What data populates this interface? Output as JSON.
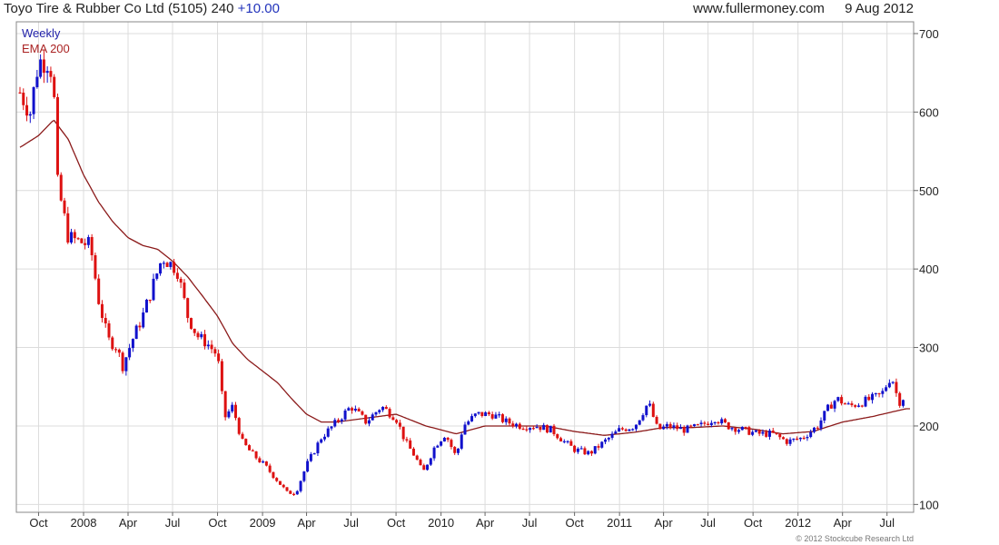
{
  "header": {
    "company": "Toyo Tire & Rubber Co Ltd",
    "code": "(5105)",
    "price": "240",
    "change": "+10.00",
    "site": "www.fullermoney.com",
    "date": "9 Aug 2012"
  },
  "copyright": "© 2012 Stockcube Research Ltd",
  "colors": {
    "up": "#1111cc",
    "down": "#dd1111",
    "ema": "#8b1a1a",
    "grid": "#dcdcdc"
  },
  "chart_data": {
    "type": "candlestick",
    "legend": [
      "Weekly",
      "EMA 200"
    ],
    "legend_position": "top-left",
    "grid": true,
    "ylim": [
      90,
      715
    ],
    "y_ticks": [
      100,
      200,
      300,
      400,
      500,
      600,
      700
    ],
    "x_tick_labels": [
      "Oct",
      "2008",
      "Apr",
      "Jul",
      "Oct",
      "2009",
      "Apr",
      "Jul",
      "Oct",
      "2010",
      "Apr",
      "Jul",
      "Oct",
      "2011",
      "Apr",
      "Jul",
      "Oct",
      "2012",
      "Apr",
      "Jul"
    ],
    "x_tick_dates": [
      "2007-10-01",
      "2008-01-01",
      "2008-04-01",
      "2008-07-01",
      "2008-10-01",
      "2009-01-01",
      "2009-04-01",
      "2009-07-01",
      "2009-10-01",
      "2010-01-01",
      "2010-04-01",
      "2010-07-01",
      "2010-10-01",
      "2011-01-01",
      "2011-04-01",
      "2011-07-01",
      "2011-10-01",
      "2012-01-01",
      "2012-04-01",
      "2012-07-01"
    ],
    "x_range": [
      "2007-08-24",
      "2012-08-17"
    ],
    "price_anchors": [
      [
        "2007-08-24",
        625
      ],
      [
        "2007-09-14",
        600
      ],
      [
        "2007-10-01",
        665
      ],
      [
        "2007-10-20",
        665
      ],
      [
        "2007-11-01",
        645
      ],
      [
        "2007-11-05",
        520
      ],
      [
        "2007-12-01",
        440
      ],
      [
        "2008-01-15",
        430
      ],
      [
        "2008-02-01",
        360
      ],
      [
        "2008-02-20",
        310
      ],
      [
        "2008-03-10",
        300
      ],
      [
        "2008-03-20",
        275
      ],
      [
        "2008-04-10",
        310
      ],
      [
        "2008-05-01",
        340
      ],
      [
        "2008-06-10",
        415
      ],
      [
        "2008-07-10",
        400
      ],
      [
        "2008-08-01",
        340
      ],
      [
        "2008-08-20",
        315
      ],
      [
        "2008-09-10",
        305
      ],
      [
        "2008-10-01",
        290
      ],
      [
        "2008-10-15",
        210
      ],
      [
        "2008-11-01",
        225
      ],
      [
        "2008-11-20",
        180
      ],
      [
        "2008-12-10",
        165
      ],
      [
        "2009-01-05",
        150
      ],
      [
        "2009-02-01",
        130
      ],
      [
        "2009-02-20",
        115
      ],
      [
        "2009-03-10",
        115
      ],
      [
        "2009-04-01",
        150
      ],
      [
        "2009-05-01",
        185
      ],
      [
        "2009-06-01",
        205
      ],
      [
        "2009-07-01",
        225
      ],
      [
        "2009-08-01",
        205
      ],
      [
        "2009-09-01",
        225
      ],
      [
        "2009-10-01",
        210
      ],
      [
        "2009-10-20",
        180
      ],
      [
        "2009-11-10",
        160
      ],
      [
        "2009-11-25",
        140
      ],
      [
        "2009-12-20",
        175
      ],
      [
        "2010-01-10",
        190
      ],
      [
        "2010-02-01",
        160
      ],
      [
        "2010-02-15",
        200
      ],
      [
        "2010-03-15",
        215
      ],
      [
        "2010-04-15",
        215
      ],
      [
        "2010-05-15",
        205
      ],
      [
        "2010-06-15",
        200
      ],
      [
        "2010-07-15",
        200
      ],
      [
        "2010-08-15",
        195
      ],
      [
        "2010-09-10",
        180
      ],
      [
        "2010-10-01",
        170
      ],
      [
        "2010-11-01",
        165
      ],
      [
        "2010-12-01",
        180
      ],
      [
        "2011-01-01",
        195
      ],
      [
        "2011-02-01",
        200
      ],
      [
        "2011-03-01",
        230
      ],
      [
        "2011-03-20",
        195
      ],
      [
        "2011-04-10",
        200
      ],
      [
        "2011-05-15",
        195
      ],
      [
        "2011-06-15",
        200
      ],
      [
        "2011-07-15",
        210
      ],
      [
        "2011-08-10",
        200
      ],
      [
        "2011-09-10",
        195
      ],
      [
        "2011-10-10",
        190
      ],
      [
        "2011-11-10",
        190
      ],
      [
        "2011-12-10",
        180
      ],
      [
        "2012-01-10",
        185
      ],
      [
        "2012-02-10",
        200
      ],
      [
        "2012-03-05",
        225
      ],
      [
        "2012-03-20",
        235
      ],
      [
        "2012-04-15",
        225
      ],
      [
        "2012-05-10",
        230
      ],
      [
        "2012-06-01",
        235
      ],
      [
        "2012-06-20",
        240
      ],
      [
        "2012-07-10",
        265
      ],
      [
        "2012-07-25",
        230
      ],
      [
        "2012-08-09",
        240
      ]
    ],
    "ema_anchors": [
      [
        "2007-08-24",
        555
      ],
      [
        "2007-10-01",
        570
      ],
      [
        "2007-11-01",
        590
      ],
      [
        "2007-12-01",
        565
      ],
      [
        "2008-01-01",
        520
      ],
      [
        "2008-02-01",
        485
      ],
      [
        "2008-03-01",
        460
      ],
      [
        "2008-04-01",
        440
      ],
      [
        "2008-05-01",
        430
      ],
      [
        "2008-06-01",
        425
      ],
      [
        "2008-07-01",
        410
      ],
      [
        "2008-08-01",
        390
      ],
      [
        "2008-09-01",
        365
      ],
      [
        "2008-10-01",
        340
      ],
      [
        "2008-11-01",
        305
      ],
      [
        "2008-12-01",
        285
      ],
      [
        "2009-01-01",
        270
      ],
      [
        "2009-02-01",
        255
      ],
      [
        "2009-03-01",
        235
      ],
      [
        "2009-04-01",
        215
      ],
      [
        "2009-05-01",
        205
      ],
      [
        "2009-06-01",
        205
      ],
      [
        "2009-08-01",
        210
      ],
      [
        "2009-10-01",
        215
      ],
      [
        "2009-12-01",
        200
      ],
      [
        "2010-02-01",
        190
      ],
      [
        "2010-04-01",
        200
      ],
      [
        "2010-06-01",
        200
      ],
      [
        "2010-08-01",
        200
      ],
      [
        "2010-10-01",
        193
      ],
      [
        "2010-12-01",
        188
      ],
      [
        "2011-02-01",
        192
      ],
      [
        "2011-04-01",
        198
      ],
      [
        "2011-06-01",
        198
      ],
      [
        "2011-08-01",
        200
      ],
      [
        "2011-10-01",
        196
      ],
      [
        "2011-12-01",
        190
      ],
      [
        "2012-02-01",
        193
      ],
      [
        "2012-04-01",
        205
      ],
      [
        "2012-06-01",
        212
      ],
      [
        "2012-08-09",
        222
      ]
    ]
  }
}
